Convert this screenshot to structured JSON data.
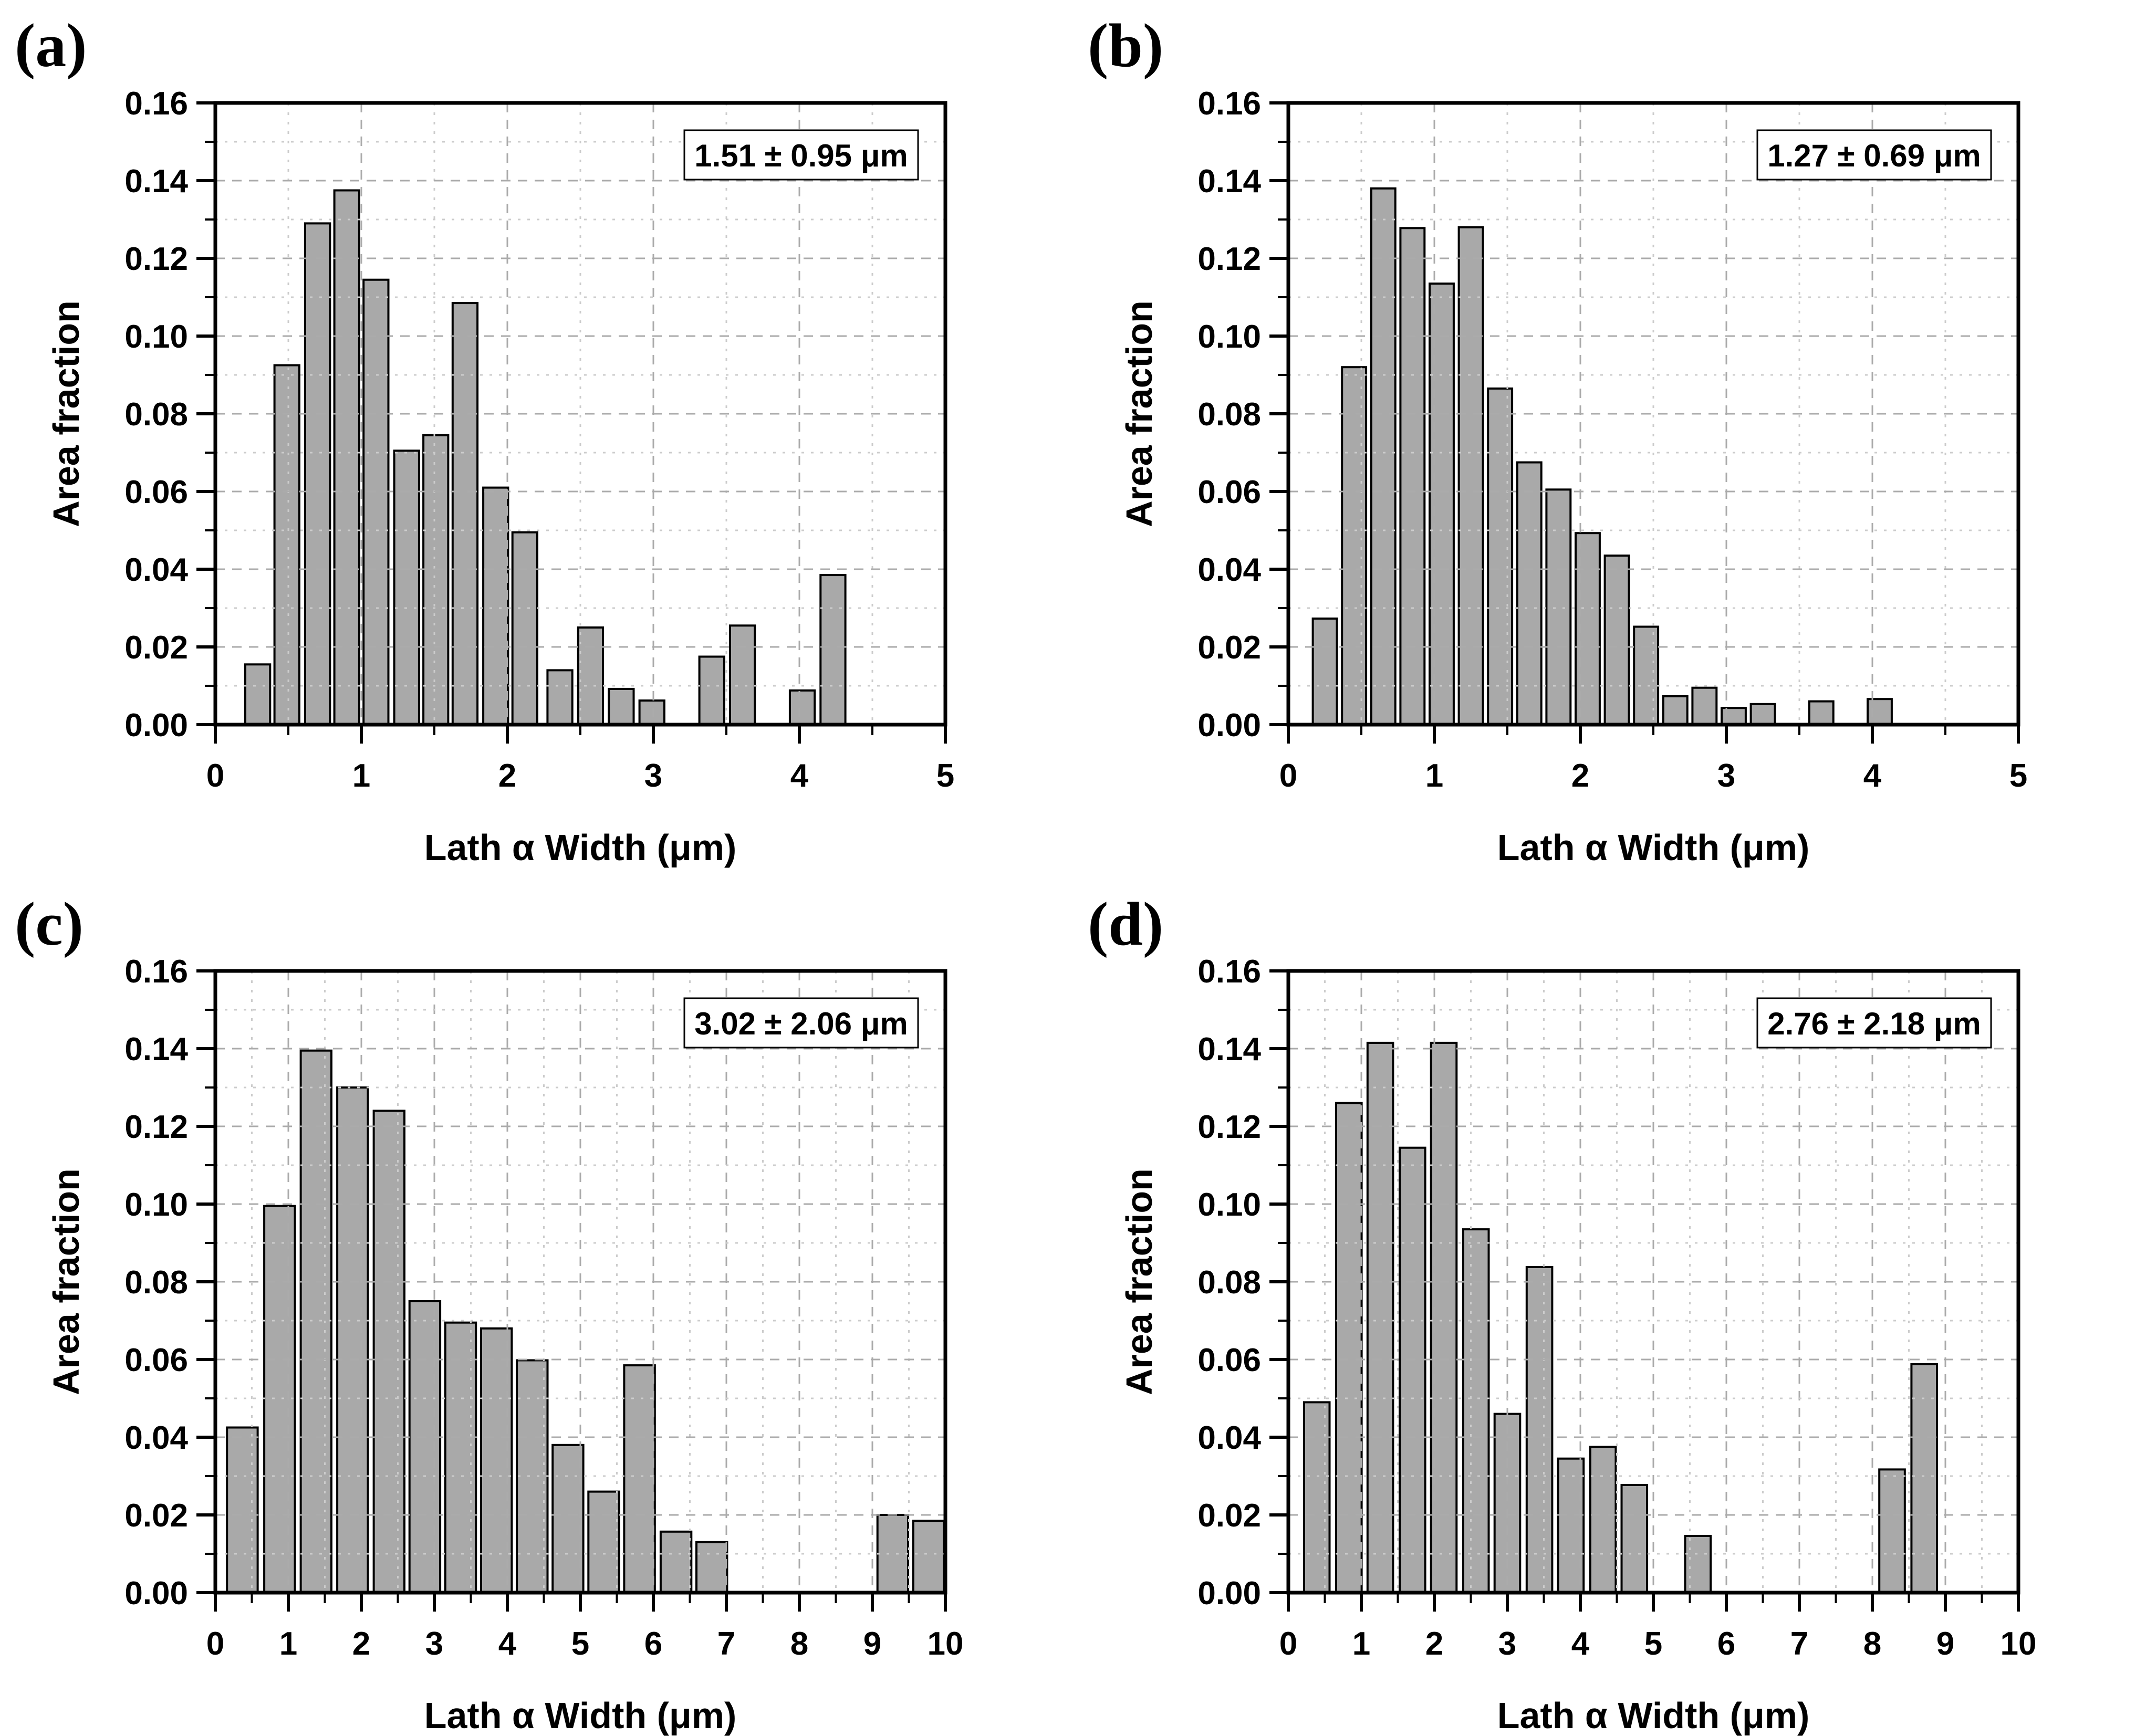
{
  "figure": {
    "background": "#ffffff",
    "bar_fill": "#a9a9a9",
    "bar_stroke": "#000000",
    "frame_color": "#000000",
    "grid_major_color": "#ababab",
    "grid_minor_color": "#cccccc",
    "xlabel": "Lath α Width (μm)",
    "ylabel": "Area fraction",
    "y_tick_labels": [
      "0.00",
      "0.02",
      "0.04",
      "0.06",
      "0.08",
      "0.10",
      "0.12",
      "0.14",
      "0.16"
    ]
  },
  "chart_data": [
    {
      "type": "bar",
      "panel": "(a)",
      "annotation": "1.51 ± 0.95 μm",
      "xlabel": "Lath α Width (μm)",
      "ylabel": "Area fraction",
      "xlim": [
        0,
        5
      ],
      "ylim": [
        0,
        0.16
      ],
      "x_major_step": 1,
      "x_minor_step": 0.5,
      "y_major_step": 0.02,
      "y_minor_step": 0.01,
      "x_tick_labels": [
        "0",
        "1",
        "2",
        "3",
        "4",
        "5"
      ],
      "bar_width": 0.17,
      "x": [
        0.29,
        0.49,
        0.7,
        0.9,
        1.1,
        1.31,
        1.51,
        1.71,
        1.92,
        2.12,
        2.36,
        2.57,
        2.78,
        2.99,
        3.4,
        3.61,
        4.02,
        4.23
      ],
      "values": [
        0.0155,
        0.0925,
        0.129,
        0.1375,
        0.1145,
        0.0705,
        0.0745,
        0.1085,
        0.061,
        0.0495,
        0.014,
        0.025,
        0.0092,
        0.0062,
        0.0175,
        0.0255,
        0.0088,
        0.0385
      ]
    },
    {
      "type": "bar",
      "panel": "(b)",
      "annotation": "1.27 ± 0.69 μm",
      "xlabel": "Lath α Width (μm)",
      "ylabel": "Area fraction",
      "xlim": [
        0,
        5
      ],
      "ylim": [
        0,
        0.16
      ],
      "x_major_step": 1,
      "x_minor_step": 0.5,
      "y_major_step": 0.02,
      "y_minor_step": 0.01,
      "x_tick_labels": [
        "0",
        "1",
        "2",
        "3",
        "4",
        "5"
      ],
      "bar_width": 0.165,
      "x": [
        0.25,
        0.45,
        0.65,
        0.85,
        1.05,
        1.25,
        1.45,
        1.65,
        1.85,
        2.05,
        2.25,
        2.45,
        2.65,
        2.85,
        3.05,
        3.25,
        3.65,
        4.05
      ],
      "values": [
        0.0273,
        0.092,
        0.138,
        0.1278,
        0.1135,
        0.128,
        0.0865,
        0.0675,
        0.0605,
        0.0493,
        0.0435,
        0.0252,
        0.0073,
        0.0095,
        0.0043,
        0.0053,
        0.006,
        0.0066
      ]
    },
    {
      "type": "bar",
      "panel": "(c)",
      "annotation": "3.02 ± 2.06 μm",
      "xlabel": "Lath α Width (μm)",
      "ylabel": "Area fraction",
      "xlim": [
        0,
        10
      ],
      "ylim": [
        0,
        0.16
      ],
      "x_major_step": 1,
      "x_minor_step": 0.5,
      "y_major_step": 0.02,
      "y_minor_step": 0.01,
      "x_tick_labels": [
        "0",
        "1",
        "2",
        "3",
        "4",
        "5",
        "6",
        "7",
        "8",
        "9",
        "10"
      ],
      "bar_width": 0.42,
      "x": [
        0.37,
        0.88,
        1.38,
        1.88,
        2.38,
        2.87,
        3.36,
        3.85,
        4.34,
        4.83,
        5.32,
        5.81,
        6.31,
        6.8,
        9.28,
        9.77
      ],
      "values": [
        0.0425,
        0.0995,
        0.1395,
        0.13,
        0.124,
        0.075,
        0.0695,
        0.068,
        0.0598,
        0.038,
        0.026,
        0.0585,
        0.0157,
        0.013,
        0.02,
        0.0185
      ]
    },
    {
      "type": "bar",
      "panel": "(d)",
      "annotation": "2.76 ± 2.18 μm",
      "xlabel": "Lath α Width (μm)",
      "ylabel": "Area fraction",
      "xlim": [
        0,
        10
      ],
      "ylim": [
        0,
        0.16
      ],
      "x_major_step": 1,
      "x_minor_step": 0.5,
      "y_major_step": 0.02,
      "y_minor_step": 0.01,
      "x_tick_labels": [
        "0",
        "1",
        "2",
        "3",
        "4",
        "5",
        "6",
        "7",
        "8",
        "9",
        "10"
      ],
      "bar_width": 0.35,
      "x": [
        0.39,
        0.83,
        1.26,
        1.7,
        2.13,
        2.57,
        3.0,
        3.44,
        3.87,
        4.31,
        4.74,
        5.61,
        8.27,
        8.71
      ],
      "values": [
        0.049,
        0.126,
        0.1415,
        0.1145,
        0.1415,
        0.0935,
        0.046,
        0.0838,
        0.0345,
        0.0375,
        0.0277,
        0.0146,
        0.0317,
        0.0588
      ]
    }
  ]
}
